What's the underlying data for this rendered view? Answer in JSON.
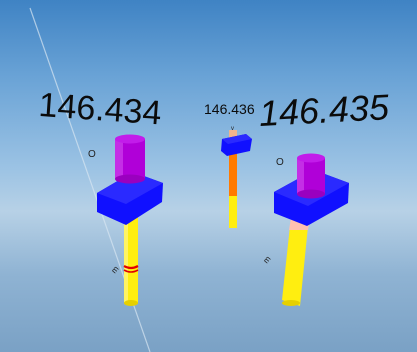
{
  "readouts": {
    "left": "146.434",
    "center": "146.436",
    "right": "146.435"
  },
  "markers": {
    "left_o": "O",
    "right_o": "O",
    "center_v": "v",
    "left_pin": "m",
    "right_pin": "m"
  },
  "colors": {
    "cap": "#b000d8",
    "block": "#1010ff",
    "shaft_yellow": "#ffee10",
    "shaft_orange": "#ff7a00",
    "shaft_tan": "#e6a07a",
    "ring_red": "#e00000"
  }
}
